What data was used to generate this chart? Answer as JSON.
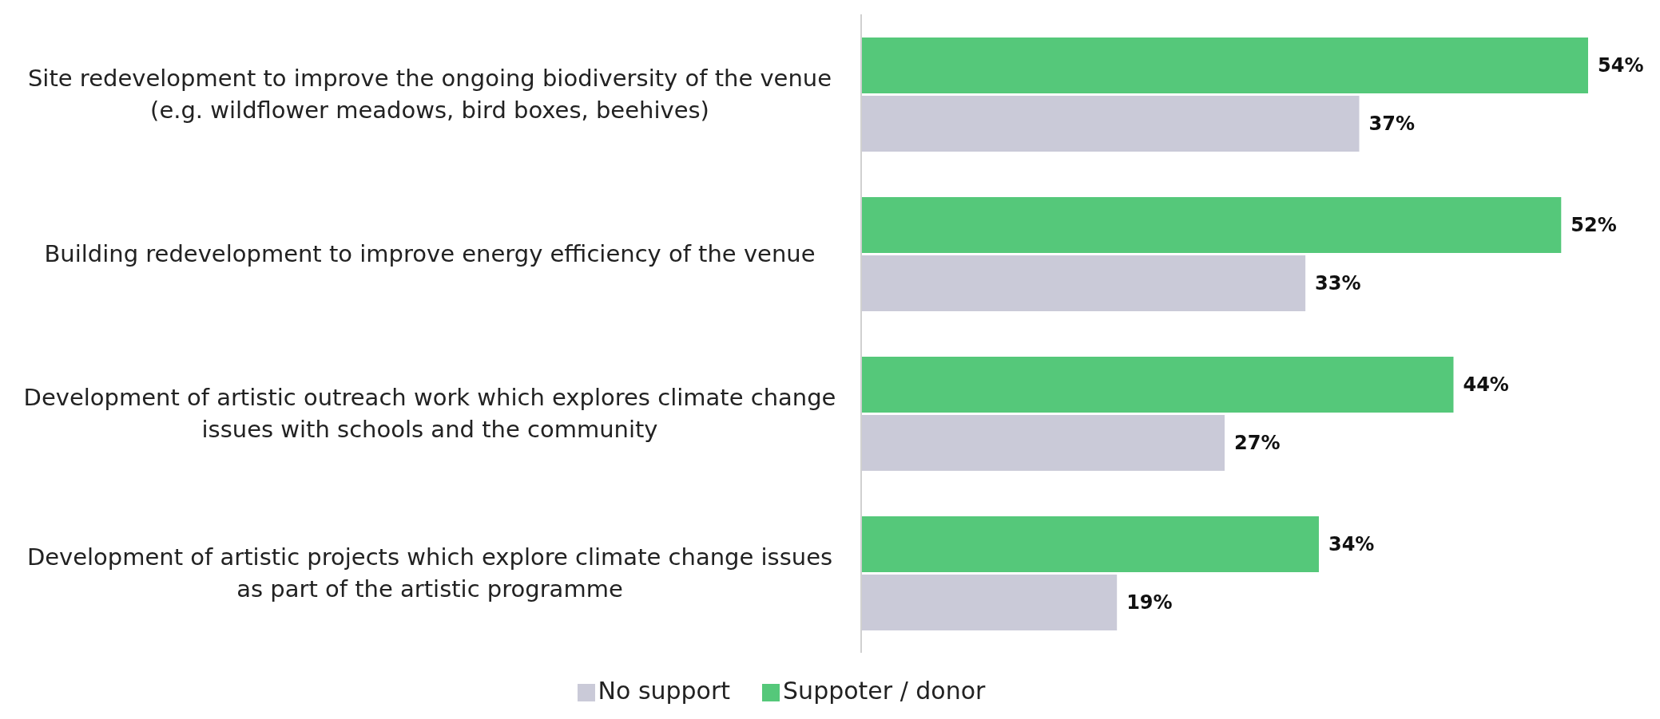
{
  "chart_data": {
    "type": "bar",
    "orientation": "horizontal",
    "categories": [
      "Site redevelopment to improve the ongoing biodiversity of the venue (e.g. wildflower meadows, bird boxes, beehives)",
      "Building redevelopment to improve energy efficiency of the venue",
      "Development of artistic outreach work which explores climate change issues with schools and the community",
      "Development of artistic projects which explore climate change issues as part of the artistic programme"
    ],
    "series": [
      {
        "name": "Suppoter / donor",
        "color": "#55c87a",
        "values": [
          54,
          52,
          44,
          34
        ],
        "value_labels": [
          "54%",
          "52%",
          "44%",
          "34%"
        ]
      },
      {
        "name": "No support",
        "color": "#cacad8",
        "values": [
          37,
          33,
          27,
          19
        ],
        "value_labels": [
          "37%",
          "33%",
          "27%",
          "19%"
        ]
      }
    ],
    "legend": "bottom"
  }
}
